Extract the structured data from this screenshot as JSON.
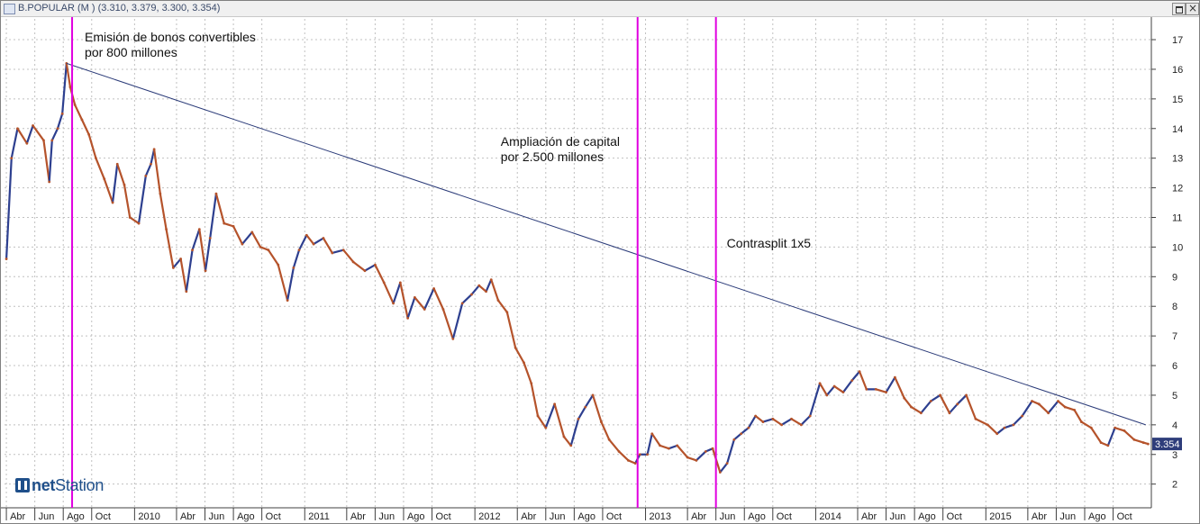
{
  "window": {
    "title": "B.POPULAR (M ) (3.310, 3.379, 3.300, 3.354)"
  },
  "logo": {
    "text_bold": "net",
    "text": "Station"
  },
  "chart_data": {
    "type": "line",
    "series": [
      {
        "values": [
          [
            "2009-04-01",
            9.6
          ],
          [
            "2009-04-12",
            13.0
          ],
          [
            "2009-04-25",
            14.0
          ],
          [
            "2009-05-15",
            13.5
          ],
          [
            "2009-05-28",
            14.1
          ],
          [
            "2009-06-20",
            13.6
          ],
          [
            "2009-07-02",
            12.2
          ],
          [
            "2009-07-08",
            13.6
          ],
          [
            "2009-07-20",
            14.0
          ],
          [
            "2009-07-30",
            14.5
          ],
          [
            "2009-08-08",
            16.2
          ],
          [
            "2009-08-16",
            15.4
          ],
          [
            "2009-08-26",
            14.8
          ],
          [
            "2009-09-10",
            14.3
          ],
          [
            "2009-09-25",
            13.8
          ],
          [
            "2009-10-10",
            13.0
          ],
          [
            "2009-10-28",
            12.3
          ],
          [
            "2009-11-15",
            11.5
          ],
          [
            "2009-11-25",
            12.8
          ],
          [
            "2009-12-10",
            12.1
          ],
          [
            "2009-12-22",
            11.0
          ],
          [
            "2010-01-10",
            10.8
          ],
          [
            "2010-01-25",
            12.4
          ],
          [
            "2010-02-05",
            12.8
          ],
          [
            "2010-02-12",
            13.3
          ],
          [
            "2010-02-25",
            11.8
          ],
          [
            "2010-03-10",
            10.6
          ],
          [
            "2010-03-25",
            9.3
          ],
          [
            "2010-04-10",
            9.6
          ],
          [
            "2010-04-22",
            8.5
          ],
          [
            "2010-05-05",
            9.9
          ],
          [
            "2010-05-20",
            10.6
          ],
          [
            "2010-06-02",
            9.2
          ],
          [
            "2010-06-12",
            10.3
          ],
          [
            "2010-06-25",
            11.8
          ],
          [
            "2010-07-12",
            10.8
          ],
          [
            "2010-08-01",
            10.7
          ],
          [
            "2010-08-20",
            10.1
          ],
          [
            "2010-09-10",
            10.5
          ],
          [
            "2010-09-28",
            10.0
          ],
          [
            "2010-10-15",
            9.9
          ],
          [
            "2010-11-05",
            9.4
          ],
          [
            "2010-11-25",
            8.2
          ],
          [
            "2010-12-08",
            9.3
          ],
          [
            "2010-12-20",
            9.9
          ],
          [
            "2011-01-05",
            10.4
          ],
          [
            "2011-01-20",
            10.1
          ],
          [
            "2011-02-10",
            10.3
          ],
          [
            "2011-03-01",
            9.8
          ],
          [
            "2011-03-25",
            9.9
          ],
          [
            "2011-04-15",
            9.5
          ],
          [
            "2011-05-10",
            9.2
          ],
          [
            "2011-06-01",
            9.4
          ],
          [
            "2011-06-20",
            8.8
          ],
          [
            "2011-07-10",
            8.1
          ],
          [
            "2011-07-25",
            8.8
          ],
          [
            "2011-08-10",
            7.6
          ],
          [
            "2011-08-25",
            8.3
          ],
          [
            "2011-09-15",
            7.9
          ],
          [
            "2011-10-05",
            8.6
          ],
          [
            "2011-10-25",
            7.9
          ],
          [
            "2011-11-15",
            6.9
          ],
          [
            "2011-12-05",
            8.1
          ],
          [
            "2011-12-25",
            8.4
          ],
          [
            "2012-01-10",
            8.7
          ],
          [
            "2012-01-25",
            8.5
          ],
          [
            "2012-02-05",
            8.9
          ],
          [
            "2012-02-20",
            8.2
          ],
          [
            "2012-03-10",
            7.8
          ],
          [
            "2012-03-28",
            6.6
          ],
          [
            "2012-04-15",
            6.1
          ],
          [
            "2012-05-01",
            5.4
          ],
          [
            "2012-05-15",
            4.3
          ],
          [
            "2012-06-01",
            3.9
          ],
          [
            "2012-06-20",
            4.7
          ],
          [
            "2012-07-10",
            3.6
          ],
          [
            "2012-07-25",
            3.3
          ],
          [
            "2012-08-10",
            4.2
          ],
          [
            "2012-08-25",
            4.6
          ],
          [
            "2012-09-10",
            5.0
          ],
          [
            "2012-09-28",
            4.1
          ],
          [
            "2012-10-15",
            3.5
          ],
          [
            "2012-11-05",
            3.1
          ],
          [
            "2012-11-25",
            2.8
          ],
          [
            "2012-12-10",
            2.7
          ],
          [
            "2012-12-20",
            3.0
          ],
          [
            "2013-01-05",
            3.0
          ],
          [
            "2013-01-15",
            3.7
          ],
          [
            "2013-02-01",
            3.3
          ],
          [
            "2013-02-20",
            3.2
          ],
          [
            "2013-03-10",
            3.3
          ],
          [
            "2013-04-01",
            2.9
          ],
          [
            "2013-04-20",
            2.8
          ],
          [
            "2013-05-10",
            3.1
          ],
          [
            "2013-05-25",
            3.2
          ],
          [
            "2013-06-10",
            2.4
          ],
          [
            "2013-06-25",
            2.7
          ],
          [
            "2013-07-10",
            3.5
          ],
          [
            "2013-07-25",
            3.7
          ],
          [
            "2013-08-10",
            3.9
          ],
          [
            "2013-08-25",
            4.3
          ],
          [
            "2013-09-10",
            4.1
          ],
          [
            "2013-10-01",
            4.2
          ],
          [
            "2013-10-20",
            4.0
          ],
          [
            "2013-11-10",
            4.2
          ],
          [
            "2013-12-01",
            4.0
          ],
          [
            "2013-12-20",
            4.3
          ],
          [
            "2014-01-10",
            5.4
          ],
          [
            "2014-01-25",
            5.0
          ],
          [
            "2014-02-10",
            5.3
          ],
          [
            "2014-03-01",
            5.1
          ],
          [
            "2014-03-20",
            5.5
          ],
          [
            "2014-04-05",
            5.8
          ],
          [
            "2014-04-20",
            5.2
          ],
          [
            "2014-05-10",
            5.2
          ],
          [
            "2014-06-01",
            5.1
          ],
          [
            "2014-06-20",
            5.6
          ],
          [
            "2014-07-10",
            4.9
          ],
          [
            "2014-07-25",
            4.6
          ],
          [
            "2014-08-15",
            4.4
          ],
          [
            "2014-09-05",
            4.8
          ],
          [
            "2014-09-25",
            5.0
          ],
          [
            "2014-10-15",
            4.4
          ],
          [
            "2014-11-01",
            4.7
          ],
          [
            "2014-11-20",
            5.0
          ],
          [
            "2014-12-10",
            4.2
          ],
          [
            "2015-01-05",
            4.0
          ],
          [
            "2015-01-25",
            3.7
          ],
          [
            "2015-02-10",
            3.9
          ],
          [
            "2015-03-01",
            4.0
          ],
          [
            "2015-03-20",
            4.3
          ],
          [
            "2015-04-10",
            4.8
          ],
          [
            "2015-04-25",
            4.7
          ],
          [
            "2015-05-15",
            4.4
          ],
          [
            "2015-06-05",
            4.8
          ],
          [
            "2015-06-20",
            4.6
          ],
          [
            "2015-07-10",
            4.5
          ],
          [
            "2015-07-25",
            4.1
          ],
          [
            "2015-08-15",
            3.9
          ],
          [
            "2015-09-05",
            3.4
          ],
          [
            "2015-09-20",
            3.3
          ],
          [
            "2015-10-05",
            3.9
          ],
          [
            "2015-10-25",
            3.8
          ],
          [
            "2015-11-15",
            3.5
          ],
          [
            "2015-12-05",
            3.4
          ],
          [
            "2015-12-15",
            3.354
          ]
        ]
      }
    ],
    "x_range": [
      "2009-03-28",
      "2015-12-22"
    ],
    "ylim": [
      1.2,
      17.7
    ],
    "yticks": [
      2,
      3,
      4,
      5,
      6,
      7,
      8,
      9,
      10,
      11,
      12,
      13,
      14,
      15,
      16,
      17
    ],
    "yaxis_position": "right",
    "xtick_labels": [
      {
        "date": "2009-04-01",
        "label": "Abr"
      },
      {
        "date": "2009-06-01",
        "label": "Jun"
      },
      {
        "date": "2009-08-01",
        "label": "Ago"
      },
      {
        "date": "2009-10-01",
        "label": "Oct"
      },
      {
        "date": "2010-01-01",
        "label": "2010"
      },
      {
        "date": "2010-04-01",
        "label": "Abr"
      },
      {
        "date": "2010-06-01",
        "label": "Jun"
      },
      {
        "date": "2010-08-01",
        "label": "Ago"
      },
      {
        "date": "2010-10-01",
        "label": "Oct"
      },
      {
        "date": "2011-01-01",
        "label": "2011"
      },
      {
        "date": "2011-04-01",
        "label": "Abr"
      },
      {
        "date": "2011-06-01",
        "label": "Jun"
      },
      {
        "date": "2011-08-01",
        "label": "Ago"
      },
      {
        "date": "2011-10-01",
        "label": "Oct"
      },
      {
        "date": "2012-01-01",
        "label": "2012"
      },
      {
        "date": "2012-04-01",
        "label": "Abr"
      },
      {
        "date": "2012-06-01",
        "label": "Jun"
      },
      {
        "date": "2012-08-01",
        "label": "Ago"
      },
      {
        "date": "2012-10-01",
        "label": "Oct"
      },
      {
        "date": "2013-01-01",
        "label": "2013"
      },
      {
        "date": "2013-04-01",
        "label": "Abr"
      },
      {
        "date": "2013-06-01",
        "label": "Jun"
      },
      {
        "date": "2013-08-01",
        "label": "Ago"
      },
      {
        "date": "2013-10-01",
        "label": "Oct"
      },
      {
        "date": "2014-01-01",
        "label": "2014"
      },
      {
        "date": "2014-04-01",
        "label": "Abr"
      },
      {
        "date": "2014-06-01",
        "label": "Jun"
      },
      {
        "date": "2014-08-01",
        "label": "Ago"
      },
      {
        "date": "2014-10-01",
        "label": "Oct"
      },
      {
        "date": "2015-01-01",
        "label": "2015"
      },
      {
        "date": "2015-04-01",
        "label": "Abr"
      },
      {
        "date": "2015-06-01",
        "label": "Jun"
      },
      {
        "date": "2015-08-01",
        "label": "Ago"
      },
      {
        "date": "2015-10-01",
        "label": "Oct"
      }
    ],
    "grid": true,
    "last_price_label": "3.354",
    "trendline": {
      "from": [
        "2009-08-08",
        16.2
      ],
      "to": [
        "2015-12-10",
        4.0
      ]
    },
    "event_lines": [
      {
        "date": "2009-08-20",
        "label_lines": [
          "Emisión de bonos convertibles",
          "por 800 millones"
        ]
      },
      {
        "date": "2012-12-15",
        "label_lines": [
          "Ampliación de capital",
          "por 2.500 millones"
        ]
      },
      {
        "date": "2013-06-01",
        "label_lines": [
          "Contrasplit 1x5"
        ]
      }
    ],
    "colors": {
      "price": "#b5532b",
      "price_alt": "#2d3f8f",
      "trendline": "#2a3a78",
      "event_line": "#e000e0",
      "grid": "#c0c0c0",
      "price_box": "#2e3d7a"
    }
  }
}
